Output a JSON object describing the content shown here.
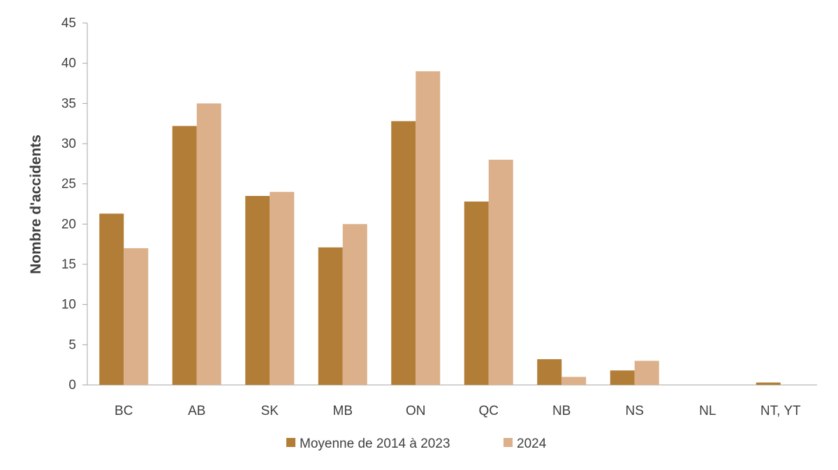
{
  "chart_data": {
    "type": "bar",
    "categories": [
      "BC",
      "AB",
      "SK",
      "MB",
      "ON",
      "QC",
      "NB",
      "NS",
      "NL",
      "NT, YT"
    ],
    "series": [
      {
        "name": "Moyenne de 2014 à 2023",
        "color": "#b27d36",
        "values": [
          21.3,
          32.2,
          23.5,
          17.1,
          32.8,
          22.8,
          3.2,
          1.8,
          0,
          0.3
        ]
      },
      {
        "name": "2024",
        "color": "#dbb08a",
        "values": [
          17,
          35,
          24,
          20,
          39,
          28,
          1,
          3,
          0,
          0
        ]
      }
    ],
    "ylabel": "Nombre d'accidents",
    "ylim": [
      0,
      45
    ],
    "yticks": [
      0,
      5,
      10,
      15,
      20,
      25,
      30,
      35,
      40,
      45
    ],
    "grid": false,
    "legend_position": "bottom-center"
  }
}
